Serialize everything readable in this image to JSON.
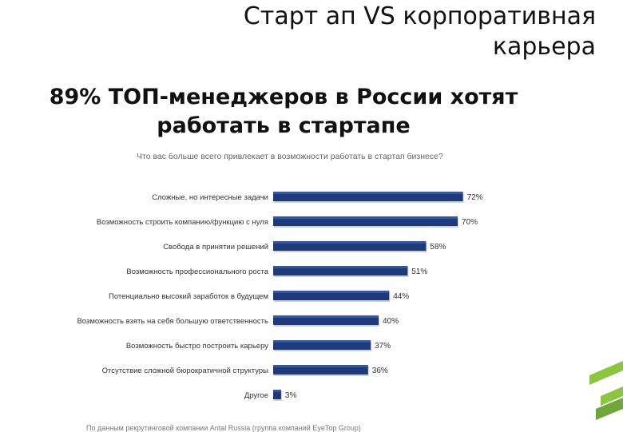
{
  "slide": {
    "title": "Старт ап VS корпоративная карьера",
    "subtitle": "89% ТОП-менеджеров в России хотят работать в стартапе",
    "source_note": "По данным рекрутинговой компании Antal Russia (группа компаний EyeTop Group)"
  },
  "colors": {
    "bar": "#1f3a78",
    "bar_highlight": "#2f58a8",
    "brand_green": "#8cc63f"
  },
  "chart_data": {
    "type": "bar",
    "orientation": "horizontal",
    "title": "Что вас больше всего привлекает в возможности работать в стартап бизнесе?",
    "xlim": [
      0,
      100
    ],
    "grid": false,
    "categories": [
      "Сложные, но интересные задачи",
      "Возможность строить компанию/функцию с нуля",
      "Свобода в принятии решений",
      "Возможность профессионального роста",
      "Потенциально высокий заработок в будущем",
      "Возможность взять на себя большую ответственность",
      "Возможность быстро построить карьеру",
      "Отсутствие сложной бюрократичной структуры",
      "Другое"
    ],
    "values": [
      72,
      70,
      58,
      51,
      44,
      40,
      37,
      36,
      3
    ],
    "value_labels": [
      "72%",
      "70%",
      "58%",
      "51%",
      "44%",
      "40%",
      "37%",
      "36%",
      "3%"
    ]
  }
}
